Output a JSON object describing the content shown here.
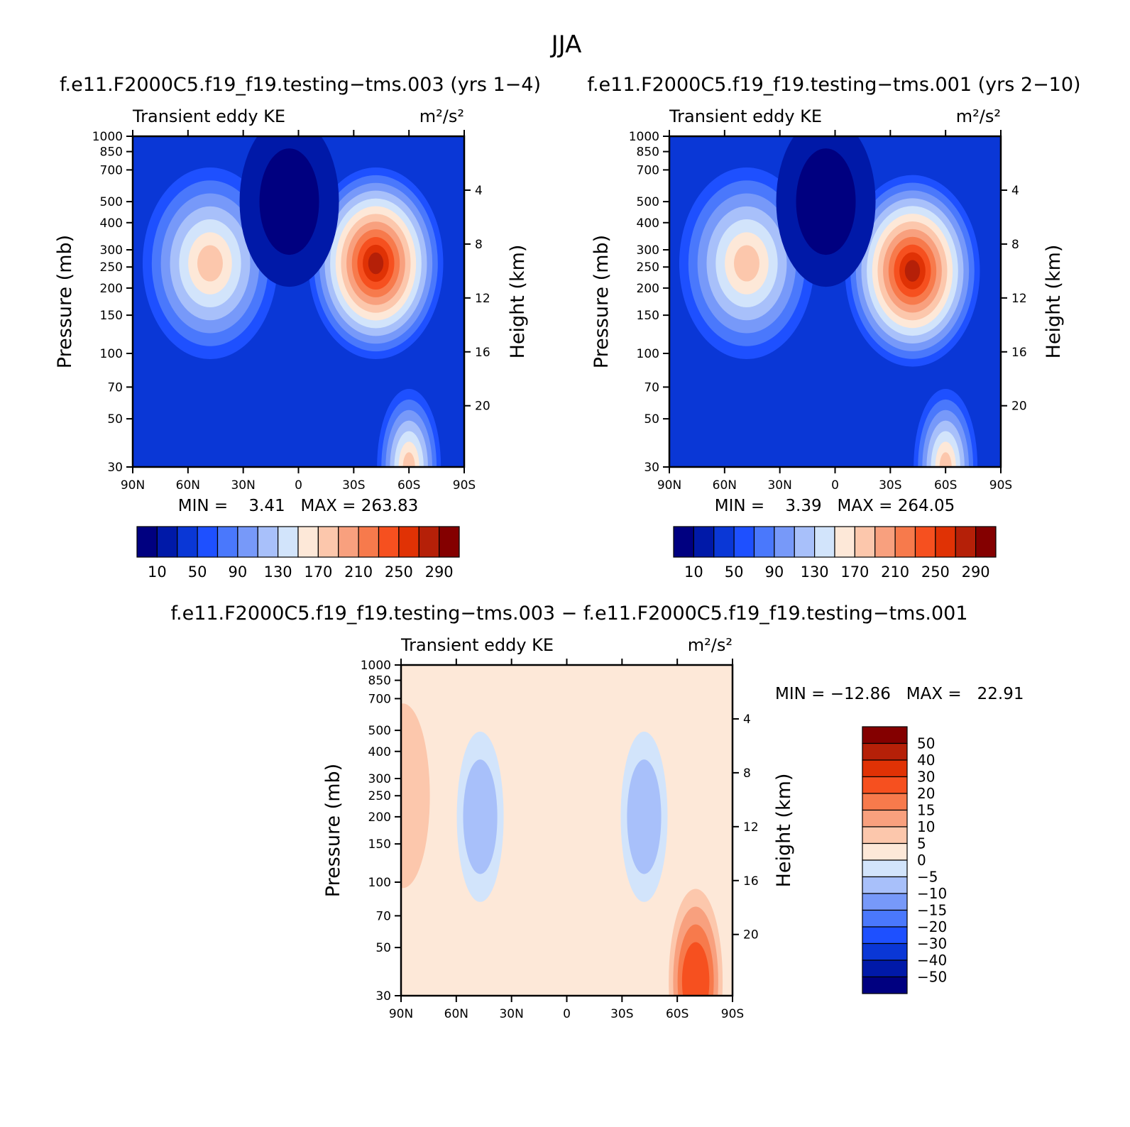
{
  "figure": {
    "title": "JJA"
  },
  "colors": {
    "ke": [
      "#000080",
      "#0019a8",
      "#0a37d6",
      "#1e50ff",
      "#4a78fc",
      "#7799f9",
      "#a8c0fa",
      "#d2e4fb",
      "#fde8d8",
      "#fcc7ac",
      "#f8a07e",
      "#f77a4c",
      "#f6501f",
      "#e03205",
      "#b52008",
      "#840000"
    ],
    "diff": [
      "#000080",
      "#0019a8",
      "#0a37d6",
      "#1e50ff",
      "#4a78fc",
      "#7799f9",
      "#a8c0fa",
      "#d2e4fb",
      "#fde8d8",
      "#fcc7ac",
      "#f8a07e",
      "#f77a4c",
      "#f6501f",
      "#e03205",
      "#b52008",
      "#840000"
    ]
  },
  "chart_data": [
    {
      "type": "heatmap",
      "panel": "case1",
      "title": "f.e11.F2000C5.f19_f19.testing−tms.003 (yrs 1−4)",
      "left_string": "Transient eddy KE",
      "right_string": "m²/s²",
      "ylabel": "Pressure (mb)",
      "ylabel_right": "Height (km)",
      "x_ticks": [
        "90N",
        "60N",
        "30N",
        "0",
        "30S",
        "60S",
        "90S"
      ],
      "y_ticks": [
        30,
        50,
        70,
        100,
        150,
        200,
        250,
        300,
        400,
        500,
        700,
        850,
        1000
      ],
      "y_ticks_right": [
        4,
        8,
        12,
        16,
        20
      ],
      "ylim": [
        1000,
        30
      ],
      "stats": "MIN =    3.41   MAX = 263.83",
      "min": 3.41,
      "max": 263.83,
      "contour_levels": [
        10,
        30,
        50,
        70,
        90,
        110,
        130,
        150,
        170,
        190,
        210,
        230,
        250,
        270,
        290
      ],
      "colorbar_labels": [
        "10",
        "50",
        "90",
        "130",
        "170",
        "210",
        "250",
        "290"
      ],
      "features": [
        {
          "name": "SH jet max",
          "lat": -42,
          "p": 260,
          "value": 263
        },
        {
          "name": "NH jet max",
          "lat": 48,
          "p": 260,
          "value": 160
        },
        {
          "name": "SH strat max",
          "lat": -60,
          "p": 30,
          "value": 170
        },
        {
          "name": "tropical min",
          "lat": 5,
          "p": 500,
          "value": 8
        }
      ]
    },
    {
      "type": "heatmap",
      "panel": "case2",
      "title": "f.e11.F2000C5.f19_f19.testing−tms.001 (yrs 2−10)",
      "left_string": "Transient eddy KE",
      "right_string": "m²/s²",
      "ylabel": "Pressure (mb)",
      "ylabel_right": "Height (km)",
      "x_ticks": [
        "90N",
        "60N",
        "30N",
        "0",
        "30S",
        "60S",
        "90S"
      ],
      "y_ticks": [
        30,
        50,
        70,
        100,
        150,
        200,
        250,
        300,
        400,
        500,
        700,
        850,
        1000
      ],
      "y_ticks_right": [
        4,
        8,
        12,
        16,
        20
      ],
      "ylim": [
        1000,
        30
      ],
      "stats": "MIN =    3.39   MAX = 264.05",
      "min": 3.39,
      "max": 264.05,
      "contour_levels": [
        10,
        30,
        50,
        70,
        90,
        110,
        130,
        150,
        170,
        190,
        210,
        230,
        250,
        270,
        290
      ],
      "colorbar_labels": [
        "10",
        "50",
        "90",
        "130",
        "170",
        "210",
        "250",
        "290"
      ],
      "features": [
        {
          "name": "SH jet max",
          "lat": -42,
          "p": 240,
          "value": 264
        },
        {
          "name": "NH jet max",
          "lat": 48,
          "p": 260,
          "value": 160
        },
        {
          "name": "SH strat max",
          "lat": -60,
          "p": 30,
          "value": 160
        },
        {
          "name": "tropical min",
          "lat": 5,
          "p": 500,
          "value": 8
        }
      ]
    },
    {
      "type": "heatmap",
      "panel": "difference",
      "title": "f.e11.F2000C5.f19_f19.testing−tms.003 − f.e11.F2000C5.f19_f19.testing−tms.001",
      "left_string": "Transient eddy KE",
      "right_string": "m²/s²",
      "ylabel": "Pressure (mb)",
      "ylabel_right": "Height (km)",
      "x_ticks": [
        "90N",
        "60N",
        "30N",
        "0",
        "30S",
        "60S",
        "90S"
      ],
      "y_ticks": [
        30,
        50,
        70,
        100,
        150,
        200,
        250,
        300,
        400,
        500,
        700,
        850,
        1000
      ],
      "y_ticks_right": [
        4,
        8,
        12,
        16,
        20
      ],
      "ylim": [
        1000,
        30
      ],
      "stats": "MIN = −12.86   MAX =   22.91",
      "min": -12.86,
      "max": 22.91,
      "contour_levels": [
        -50,
        -40,
        -30,
        -20,
        -15,
        -10,
        -5,
        0,
        5,
        10,
        15,
        20,
        30,
        40,
        50
      ],
      "colorbar_labels": [
        "50",
        "40",
        "30",
        "20",
        "15",
        "10",
        "5",
        "0",
        "−5",
        "−10",
        "−15",
        "−20",
        "−30",
        "−40",
        "−50"
      ],
      "features": [
        {
          "name": "SH strat max",
          "lat": -70,
          "p": 35,
          "value": 22.91
        },
        {
          "name": "SH jet min",
          "lat": -42,
          "p": 200,
          "value": -12.86
        },
        {
          "name": "NH jet min",
          "lat": 47,
          "p": 200,
          "value": -10
        },
        {
          "name": "NH pole max",
          "lat": 89,
          "p": 250,
          "value": 6
        }
      ]
    }
  ]
}
